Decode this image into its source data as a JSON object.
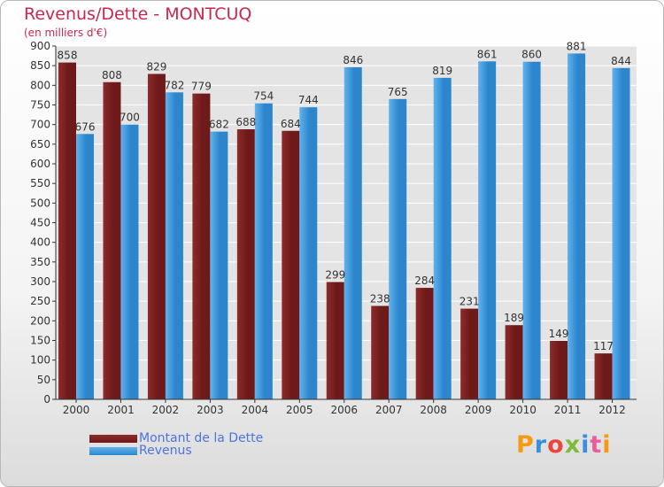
{
  "chart": {
    "title": "Revenus/Dette - MONTCUQ",
    "subtitle": "(en milliers d'€)"
  },
  "legend": {
    "dette": "Montant de la Dette",
    "revenus": "Revenus"
  },
  "logo": {
    "text": "Proxiti",
    "colors": [
      "#f39c12",
      "#3a8fd9",
      "#e8473d",
      "#7dbb3c",
      "#3a8fd9",
      "#e85d9b",
      "#f39c12"
    ]
  },
  "colors": {
    "dette": "#6e1a1a",
    "dette_highlight": "#8e2b2b",
    "revenus": "#2d86cc",
    "revenus_highlight": "#5fb2ee",
    "grid": "#ffffff",
    "axis": "#333333",
    "plot_background": "#e4e4e4"
  },
  "chart_data": {
    "type": "bar",
    "categories": [
      "2000",
      "2001",
      "2002",
      "2003",
      "2004",
      "2005",
      "2006",
      "2007",
      "2008",
      "2009",
      "2010",
      "2011",
      "2012"
    ],
    "series": [
      {
        "name": "Montant de la Dette",
        "values": [
          858,
          808,
          829,
          779,
          688,
          684,
          299,
          238,
          284,
          231,
          189,
          149,
          117
        ]
      },
      {
        "name": "Revenus",
        "values": [
          676,
          700,
          782,
          682,
          754,
          744,
          846,
          765,
          819,
          861,
          860,
          881,
          844
        ]
      }
    ],
    "ylim": [
      0,
      900
    ],
    "ytick_step": 50,
    "grid": true,
    "legend_position": "bottom-left"
  }
}
